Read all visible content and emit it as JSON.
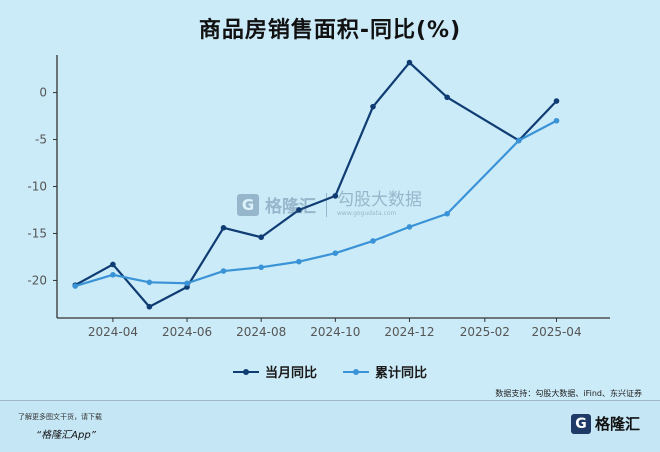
{
  "chart_data": {
    "type": "line",
    "title": "商品房销售面积-同比(%)",
    "xlabel": "",
    "ylabel": "",
    "x": [
      "2024-03",
      "2024-04",
      "2024-05",
      "2024-06",
      "2024-07",
      "2024-08",
      "2024-09",
      "2024-10",
      "2024-11",
      "2024-12",
      "2025-01",
      "2025-03",
      "2025-04"
    ],
    "x_ticks": [
      "2024-04",
      "2024-06",
      "2024-08",
      "2024-10",
      "2024-12",
      "2025-02",
      "2025-04"
    ],
    "y_ticks": [
      0,
      -5,
      -10,
      -15,
      -20
    ],
    "ylim": [
      -24,
      4
    ],
    "grid": false,
    "legend_position": "bottom",
    "series": [
      {
        "name": "当月同比",
        "color": "#0f3d73",
        "values": [
          -20.5,
          -18.3,
          -22.8,
          -20.7,
          -14.4,
          -15.4,
          -12.5,
          -11.0,
          -1.5,
          3.2,
          -0.5,
          -5.1,
          -0.9
        ]
      },
      {
        "name": "累计同比",
        "color": "#3a93d6",
        "values": [
          -20.6,
          -19.4,
          -20.2,
          -20.3,
          -19.0,
          -18.6,
          -18.0,
          -17.1,
          -15.8,
          -14.3,
          -12.9,
          -5.1,
          -3.0
        ]
      }
    ]
  },
  "source": "数据支持：勾股大数据、iFind、东兴证券",
  "watermark": {
    "brand_cn": "格隆汇",
    "partner_cn": "勾股大数据",
    "partner_url": "www.gogudata.com"
  },
  "footer": {
    "hint": "了解更多图文干货，请下载",
    "app": "“格隆汇App”",
    "logo_mark": "G",
    "logo_text": "格隆汇"
  }
}
